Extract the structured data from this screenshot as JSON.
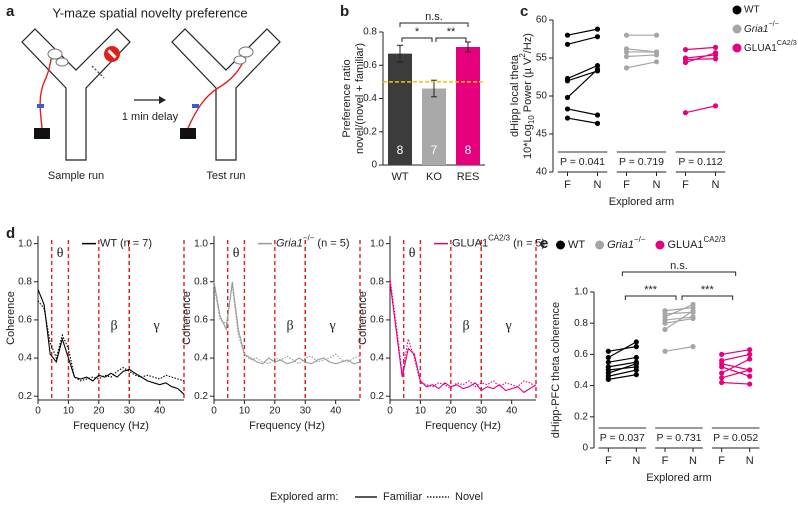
{
  "panel_a": {
    "label": "a",
    "title": "Y-maze spatial novelty preference",
    "delay": "1 min delay",
    "captions": [
      "Sample run",
      "Test run"
    ]
  },
  "chart_data": [
    {
      "type": "bar",
      "label": "b",
      "ylabel_lines": [
        "Preference ratio",
        "novel/(novel + familiar)"
      ],
      "categories": [
        "WT",
        "KO",
        "RES"
      ],
      "values": [
        0.67,
        0.46,
        0.71
      ],
      "errors": [
        0.05,
        0.05,
        0.03
      ],
      "n": [
        8,
        7,
        8
      ],
      "colors": [
        "#3c3c3c",
        "#a9a9a9",
        "#e6007e"
      ],
      "ylim": [
        0,
        0.8
      ],
      "yticks": [
        0,
        0.2,
        0.4,
        0.6,
        0.8
      ],
      "reference_line": {
        "value": 0.5,
        "color": "#f2c200"
      },
      "significance": [
        {
          "from": "WT",
          "to": "KO",
          "label": "*"
        },
        {
          "from": "KO",
          "to": "RES",
          "label": "**"
        },
        {
          "from": "WT",
          "to": "RES",
          "label": "n.s."
        }
      ]
    },
    {
      "type": "paired",
      "label": "c",
      "ylabel_lines": [
        "dHipp local theta",
        [
          "10*Log",
          {
            "sub": "10"
          },
          " Power (µ V",
          {
            "sup": "2"
          },
          "/Hz)"
        ]
      ],
      "xlabel": "Explored arm",
      "conditions": [
        "F",
        "N"
      ],
      "ylim": [
        40,
        60
      ],
      "yticks": [
        40,
        45,
        50,
        55,
        60
      ],
      "legend": "right",
      "groups": [
        {
          "name": "WT",
          "color": "#000000",
          "p_label": "P = 0.041",
          "pairs": [
            [
              58.0,
              58.8
            ],
            [
              56.8,
              57.8
            ],
            [
              52.3,
              54.0
            ],
            [
              52.0,
              53.3
            ],
            [
              49.8,
              53.5
            ],
            [
              48.3,
              47.5
            ],
            [
              47.1,
              46.4
            ]
          ]
        },
        {
          "name": [
            {
              "i": "Gria1"
            },
            {
              "sup": "−/−"
            }
          ],
          "color": "#a6a6a6",
          "p_label": "P = 0.719",
          "pairs": [
            [
              58.0,
              58.0
            ],
            [
              56.2,
              55.8
            ],
            [
              55.8,
              55.8
            ],
            [
              55.2,
              55.4
            ],
            [
              53.7,
              54.5
            ]
          ]
        },
        {
          "name": [
            "GLUA1",
            {
              "sup": "CA2/3"
            }
          ],
          "color": "#e6007e",
          "p_label": "P = 0.112",
          "pairs": [
            [
              56.1,
              56.4
            ],
            [
              55.0,
              55.4
            ],
            [
              54.8,
              54.9
            ],
            [
              54.4,
              55.7
            ],
            [
              47.8,
              48.7
            ]
          ]
        }
      ]
    },
    {
      "type": "line",
      "label": "d",
      "legend": [
        "WT (n = 7)"
      ],
      "color": "#000000",
      "ylabel": "Coherence",
      "xlabel": "Frequency (Hz)",
      "legend_title": "Explored arm:",
      "band_color": "#e0201b",
      "xlim": [
        0,
        48
      ],
      "xticks": [
        0,
        10,
        20,
        30,
        40
      ],
      "ylim": [
        0.18,
        1.04
      ],
      "yticks": [
        0.2,
        0.4,
        0.6,
        0.8,
        {
          "value": 1,
          "label": "1.0"
        }
      ],
      "bands": [
        {
          "label": "θ",
          "from": 4.5,
          "to": 10
        },
        {
          "label": "β",
          "from": 20,
          "to": 30
        },
        {
          "label": "γ",
          "from": 30,
          "to": 48
        }
      ],
      "x": [
        0,
        2,
        4,
        6,
        8,
        10,
        12,
        14,
        16,
        18,
        20,
        22,
        24,
        26,
        28,
        30,
        32,
        34,
        36,
        38,
        40,
        42,
        44,
        46,
        48
      ],
      "series": [
        {
          "name": "Familiar",
          "dash": "solid",
          "values": [
            0.76,
            0.68,
            0.42,
            0.38,
            0.5,
            0.4,
            0.3,
            0.29,
            0.3,
            0.28,
            0.31,
            0.3,
            0.32,
            0.3,
            0.33,
            0.34,
            0.32,
            0.3,
            0.28,
            0.27,
            0.26,
            0.27,
            0.25,
            0.24,
            0.21
          ]
        },
        {
          "name": "Novel",
          "dash": "dotted",
          "values": [
            0.7,
            0.66,
            0.48,
            0.4,
            0.52,
            0.45,
            0.3,
            0.28,
            0.29,
            0.3,
            0.29,
            0.31,
            0.3,
            0.33,
            0.35,
            0.33,
            0.31,
            0.3,
            0.31,
            0.3,
            0.29,
            0.31,
            0.3,
            0.29,
            0.28
          ]
        }
      ]
    },
    {
      "type": "line",
      "legend": [
        {
          "i": "Gria1"
        },
        {
          "sup": "−/−"
        },
        " (n = 5)"
      ],
      "color": "#9a9a9a",
      "ylabel": "Coherence",
      "xlabel": "Frequency (Hz)",
      "band_color": "#e0201b",
      "xlim": [
        0,
        48
      ],
      "xticks": [
        0,
        10,
        20,
        30,
        40
      ],
      "ylim": [
        0.18,
        1.04
      ],
      "yticks": [
        0.2,
        0.4,
        0.6,
        0.8,
        {
          "value": 1,
          "label": "1.0"
        }
      ],
      "bands": [
        {
          "label": "θ",
          "from": 4.5,
          "to": 10
        },
        {
          "label": "β",
          "from": 20,
          "to": 30
        },
        {
          "label": "γ",
          "from": 30,
          "to": 48
        }
      ],
      "x": [
        0,
        2,
        4,
        6,
        8,
        10,
        12,
        14,
        16,
        18,
        20,
        22,
        24,
        26,
        28,
        30,
        32,
        34,
        36,
        38,
        40,
        42,
        44,
        46,
        48
      ],
      "series": [
        {
          "dash": "solid",
          "values": [
            0.8,
            0.62,
            0.55,
            0.8,
            0.55,
            0.42,
            0.4,
            0.38,
            0.37,
            0.4,
            0.38,
            0.39,
            0.37,
            0.38,
            0.4,
            0.38,
            0.37,
            0.39,
            0.4,
            0.38,
            0.37,
            0.38,
            0.39,
            0.37,
            0.38
          ]
        },
        {
          "dash": "dotted",
          "values": [
            0.78,
            0.6,
            0.58,
            0.78,
            0.52,
            0.42,
            0.39,
            0.4,
            0.38,
            0.37,
            0.4,
            0.39,
            0.41,
            0.39,
            0.37,
            0.4,
            0.41,
            0.38,
            0.39,
            0.4,
            0.42,
            0.39,
            0.38,
            0.4,
            0.41
          ]
        }
      ]
    },
    {
      "type": "line",
      "legend": [
        "GLUA1",
        {
          "sup": "CA2/3"
        },
        " (n = 5)"
      ],
      "color": "#e6007e",
      "ylabel": "Coherence",
      "xlabel": "Frequency (Hz)",
      "band_color": "#e0201b",
      "xlim": [
        0,
        48
      ],
      "xticks": [
        0,
        10,
        20,
        30,
        40
      ],
      "ylim": [
        0.18,
        1.04
      ],
      "yticks": [
        0.2,
        0.4,
        0.6,
        0.8,
        {
          "value": 1,
          "label": "1.0"
        }
      ],
      "bands": [
        {
          "label": "θ",
          "from": 4.5,
          "to": 10
        },
        {
          "label": "β",
          "from": 20,
          "to": 30
        },
        {
          "label": "γ",
          "from": 30,
          "to": 48
        }
      ],
      "x": [
        0,
        2,
        4,
        6,
        8,
        10,
        12,
        14,
        16,
        18,
        20,
        22,
        24,
        26,
        28,
        30,
        32,
        34,
        36,
        38,
        40,
        42,
        44,
        46,
        48
      ],
      "series": [
        {
          "dash": "solid",
          "values": [
            0.8,
            0.55,
            0.3,
            0.45,
            0.42,
            0.28,
            0.25,
            0.26,
            0.24,
            0.27,
            0.25,
            0.26,
            0.24,
            0.25,
            0.27,
            0.23,
            0.25,
            0.24,
            0.26,
            0.23,
            0.24,
            0.25,
            0.22,
            0.24,
            0.26
          ]
        },
        {
          "dash": "dotted",
          "values": [
            0.82,
            0.58,
            0.32,
            0.5,
            0.4,
            0.27,
            0.26,
            0.25,
            0.27,
            0.26,
            0.24,
            0.27,
            0.26,
            0.28,
            0.25,
            0.27,
            0.26,
            0.28,
            0.25,
            0.27,
            0.26,
            0.25,
            0.28,
            0.27,
            0.25
          ]
        }
      ]
    },
    {
      "type": "paired",
      "label": "e",
      "ylabel": "dHipp-PFC theta coherence",
      "xlabel": "Explored arm",
      "conditions": [
        "F",
        "N"
      ],
      "ylim": [
        0,
        1
      ],
      "yticks": [
        0,
        0.2,
        0.4,
        0.6,
        0.8,
        {
          "value": 1,
          "label": "1.0"
        }
      ],
      "legend": "top",
      "significance": [
        {
          "from": "WT",
          "to": "Gria1−/−",
          "label": "***"
        },
        {
          "from": "Gria1−/−",
          "to": "GLUA1CA2/3",
          "label": "***"
        },
        {
          "from": "WT",
          "to": "GLUA1CA2/3",
          "label": "n.s."
        }
      ],
      "groups": [
        {
          "name": "WT",
          "color": "#000000",
          "p_label": "P = 0.037",
          "pairs": [
            [
              0.62,
              0.65
            ],
            [
              0.58,
              0.68
            ],
            [
              0.55,
              0.58
            ],
            [
              0.52,
              0.55
            ],
            [
              0.5,
              0.52
            ],
            [
              0.48,
              0.54
            ],
            [
              0.46,
              0.5
            ],
            [
              0.44,
              0.47
            ]
          ]
        },
        {
          "name": [
            {
              "i": "Gria1"
            },
            {
              "sup": "−/−"
            }
          ],
          "color": "#a6a6a6",
          "p_label": "P = 0.731",
          "pairs": [
            [
              0.88,
              0.9
            ],
            [
              0.86,
              0.87
            ],
            [
              0.84,
              0.92
            ],
            [
              0.82,
              0.84
            ],
            [
              0.8,
              0.83
            ],
            [
              0.76,
              0.88
            ],
            [
              0.62,
              0.65
            ]
          ]
        },
        {
          "name": [
            "GLUA1",
            {
              "sup": "CA2/3"
            }
          ],
          "color": "#e6007e",
          "p_label": "P = 0.052",
          "pairs": [
            [
              0.6,
              0.63
            ],
            [
              0.56,
              0.6
            ],
            [
              0.54,
              0.5
            ],
            [
              0.48,
              0.57
            ],
            [
              0.45,
              0.5
            ],
            [
              0.42,
              0.41
            ],
            [
              0.52,
              0.46
            ]
          ]
        }
      ]
    }
  ]
}
